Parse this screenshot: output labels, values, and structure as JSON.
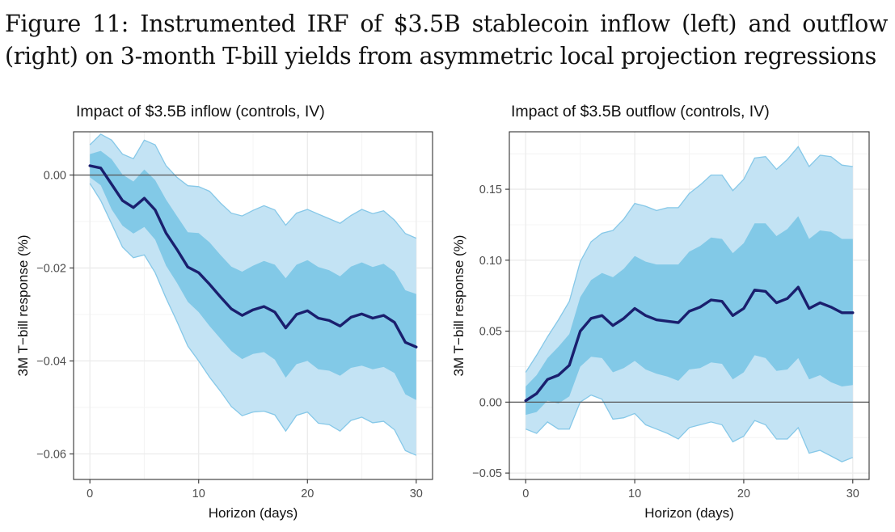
{
  "figure": {
    "caption": "Figure 11: Instrumented IRF of $3.5B stablecoin inflow (left) and outflow (right) on 3-month T-bill yields from asymmetric local projection regressions"
  },
  "colors": {
    "outer_band": "#c3e3f4",
    "outer_band_edge": "#86c8e8",
    "inner_band": "#82c9e7",
    "line": "#1a1f6e",
    "zero_line": "#555555",
    "grid": "#ebebeb"
  },
  "chart_data": [
    {
      "type": "line",
      "title": "Impact of $3.5B inflow (controls, IV)",
      "xlabel": "Horizon (days)",
      "ylabel": "3M T−bill response (%)",
      "xlim": [
        -1.5,
        31.5
      ],
      "ylim": [
        -0.0655,
        0.0093
      ],
      "x_ticks": [
        0,
        10,
        20,
        30
      ],
      "x_tick_labels": [
        "0",
        "10",
        "20",
        "30"
      ],
      "y_ticks": [
        -0.06,
        -0.04,
        -0.02,
        0.0
      ],
      "y_tick_labels": [
        "−0.06",
        "−0.04",
        "−0.02",
        "0.00"
      ],
      "grid": true,
      "hline": 0,
      "x": [
        0,
        1,
        2,
        3,
        4,
        5,
        6,
        7,
        8,
        9,
        10,
        11,
        12,
        13,
        14,
        15,
        16,
        17,
        18,
        19,
        20,
        21,
        22,
        23,
        24,
        25,
        26,
        27,
        28,
        29,
        30
      ],
      "series": [
        {
          "role": "estimate",
          "values": [
            0.002,
            0.0015,
            -0.002,
            -0.0055,
            -0.007,
            -0.005,
            -0.0075,
            -0.0125,
            -0.016,
            -0.0198,
            -0.021,
            -0.0235,
            -0.0262,
            -0.0288,
            -0.0302,
            -0.029,
            -0.0283,
            -0.0295,
            -0.0329,
            -0.03,
            -0.0292,
            -0.0308,
            -0.0313,
            -0.0325,
            -0.0306,
            -0.0299,
            -0.0308,
            -0.0302,
            -0.0317,
            -0.036,
            -0.037
          ]
        },
        {
          "role": "outer_upper",
          "values": [
            0.0065,
            0.0088,
            0.0075,
            0.0045,
            0.0035,
            0.0075,
            0.0065,
            0.002,
            -0.0005,
            -0.0023,
            -0.0025,
            -0.0035,
            -0.006,
            -0.0082,
            -0.0088,
            -0.0076,
            -0.0066,
            -0.0075,
            -0.0108,
            -0.0082,
            -0.0074,
            -0.0084,
            -0.0094,
            -0.0104,
            -0.0087,
            -0.0074,
            -0.0083,
            -0.0077,
            -0.0097,
            -0.0126,
            -0.0136
          ]
        },
        {
          "role": "outer_lower",
          "values": [
            -0.0018,
            -0.0055,
            -0.0105,
            -0.0155,
            -0.0178,
            -0.0172,
            -0.021,
            -0.0265,
            -0.0315,
            -0.0368,
            -0.04,
            -0.0435,
            -0.0465,
            -0.0498,
            -0.0518,
            -0.051,
            -0.0508,
            -0.0516,
            -0.0551,
            -0.0517,
            -0.051,
            -0.0534,
            -0.0537,
            -0.0551,
            -0.0528,
            -0.0521,
            -0.0533,
            -0.053,
            -0.0548,
            -0.0593,
            -0.0603
          ]
        },
        {
          "role": "inner_upper",
          "values": [
            0.0045,
            0.0052,
            0.0034,
            0.0001,
            -0.0014,
            0.0012,
            -0.0011,
            -0.0053,
            -0.0088,
            -0.0123,
            -0.0125,
            -0.0145,
            -0.0172,
            -0.0197,
            -0.0208,
            -0.0195,
            -0.0185,
            -0.0193,
            -0.0222,
            -0.0193,
            -0.0183,
            -0.0198,
            -0.0205,
            -0.0218,
            -0.0197,
            -0.0188,
            -0.0198,
            -0.0191,
            -0.0208,
            -0.0248,
            -0.0256
          ]
        },
        {
          "role": "inner_lower",
          "values": [
            -0.0005,
            -0.0022,
            -0.0074,
            -0.0109,
            -0.0126,
            -0.0112,
            -0.0139,
            -0.0195,
            -0.0232,
            -0.0273,
            -0.0295,
            -0.0325,
            -0.0352,
            -0.0379,
            -0.0396,
            -0.0385,
            -0.0381,
            -0.0397,
            -0.0436,
            -0.0407,
            -0.04,
            -0.0418,
            -0.0421,
            -0.0432,
            -0.0415,
            -0.041,
            -0.0418,
            -0.0413,
            -0.0426,
            -0.0472,
            -0.0484
          ]
        }
      ]
    },
    {
      "type": "line",
      "title": "Impact of $3.5B outflow (controls, IV)",
      "xlabel": "Horizon (days)",
      "ylabel": "3M T−bill response (%)",
      "xlim": [
        -1.5,
        31.5
      ],
      "ylim": [
        -0.0545,
        0.1905
      ],
      "x_ticks": [
        0,
        10,
        20,
        30
      ],
      "x_tick_labels": [
        "0",
        "10",
        "20",
        "30"
      ],
      "y_ticks": [
        -0.05,
        0.0,
        0.05,
        0.1,
        0.15
      ],
      "y_tick_labels": [
        "−0.05",
        "0.00",
        "0.05",
        "0.10",
        "0.15"
      ],
      "grid": true,
      "hline": 0,
      "x": [
        0,
        1,
        2,
        3,
        4,
        5,
        6,
        7,
        8,
        9,
        10,
        11,
        12,
        13,
        14,
        15,
        16,
        17,
        18,
        19,
        20,
        21,
        22,
        23,
        24,
        25,
        26,
        27,
        28,
        29,
        30
      ],
      "series": [
        {
          "role": "estimate",
          "values": [
            0.001,
            0.006,
            0.016,
            0.019,
            0.026,
            0.05,
            0.059,
            0.061,
            0.054,
            0.059,
            0.066,
            0.061,
            0.058,
            0.057,
            0.056,
            0.064,
            0.067,
            0.072,
            0.071,
            0.061,
            0.066,
            0.079,
            0.078,
            0.07,
            0.073,
            0.081,
            0.066,
            0.07,
            0.067,
            0.063,
            0.063
          ]
        },
        {
          "role": "outer_upper",
          "values": [
            0.021,
            0.033,
            0.046,
            0.058,
            0.071,
            0.099,
            0.113,
            0.119,
            0.121,
            0.129,
            0.14,
            0.138,
            0.135,
            0.137,
            0.137,
            0.147,
            0.153,
            0.16,
            0.16,
            0.149,
            0.157,
            0.172,
            0.173,
            0.164,
            0.171,
            0.18,
            0.166,
            0.174,
            0.173,
            0.167,
            0.166
          ]
        },
        {
          "role": "outer_lower",
          "values": [
            -0.019,
            -0.022,
            -0.014,
            -0.019,
            -0.019,
            0.0,
            0.005,
            0.002,
            -0.012,
            -0.011,
            -0.008,
            -0.016,
            -0.019,
            -0.022,
            -0.026,
            -0.018,
            -0.016,
            -0.014,
            -0.016,
            -0.028,
            -0.024,
            -0.013,
            -0.016,
            -0.026,
            -0.026,
            -0.018,
            -0.036,
            -0.034,
            -0.038,
            -0.042,
            -0.039
          ]
        },
        {
          "role": "inner_upper",
          "values": [
            0.011,
            0.019,
            0.031,
            0.039,
            0.048,
            0.074,
            0.086,
            0.091,
            0.088,
            0.094,
            0.103,
            0.099,
            0.097,
            0.097,
            0.097,
            0.106,
            0.11,
            0.116,
            0.115,
            0.105,
            0.112,
            0.126,
            0.126,
            0.117,
            0.122,
            0.131,
            0.115,
            0.121,
            0.12,
            0.115,
            0.115
          ]
        },
        {
          "role": "inner_lower",
          "values": [
            -0.009,
            -0.007,
            0.001,
            -0.001,
            0.004,
            0.025,
            0.032,
            0.031,
            0.021,
            0.024,
            0.029,
            0.023,
            0.02,
            0.018,
            0.015,
            0.023,
            0.024,
            0.028,
            0.027,
            0.016,
            0.021,
            0.033,
            0.031,
            0.022,
            0.023,
            0.031,
            0.016,
            0.019,
            0.014,
            0.011,
            0.012
          ]
        }
      ]
    }
  ]
}
